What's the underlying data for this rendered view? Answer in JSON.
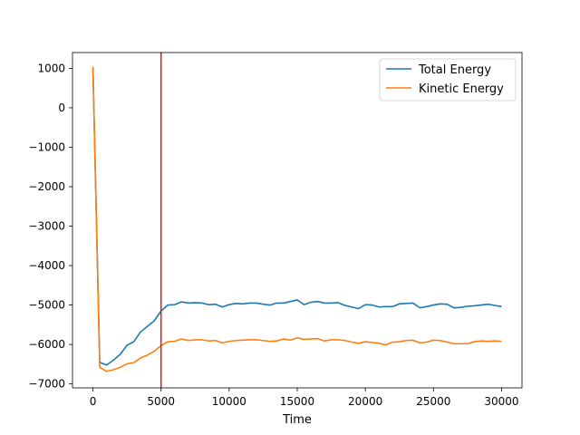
{
  "chart_data": {
    "type": "line",
    "title": "",
    "xlabel": "Time",
    "ylabel": "",
    "xlim": [
      -1500,
      31500
    ],
    "ylim": [
      -7100,
      1400
    ],
    "xticks": [
      0,
      5000,
      10000,
      15000,
      20000,
      25000,
      30000
    ],
    "xtick_labels": [
      "0",
      "5000",
      "10000",
      "15000",
      "20000",
      "25000",
      "30000"
    ],
    "yticks": [
      1000,
      0,
      -1000,
      -2000,
      -3000,
      -4000,
      -5000,
      -6000,
      -7000
    ],
    "ytick_labels": [
      "1000",
      "0",
      "−1000",
      "−2000",
      "−3000",
      "−4000",
      "−5000",
      "−6000",
      "−7000"
    ],
    "grid": false,
    "legend": "top-right",
    "vline": {
      "x": 5000,
      "color": "#d62728"
    },
    "x": [
      0,
      500,
      1000,
      1500,
      2000,
      2500,
      3000,
      3500,
      4000,
      4500,
      5000,
      5500,
      6000,
      6500,
      7000,
      7500,
      8000,
      8500,
      9000,
      9500,
      10000,
      10500,
      11000,
      11500,
      12000,
      12500,
      13000,
      13500,
      14000,
      14500,
      15000,
      15500,
      16000,
      16500,
      17000,
      17500,
      18000,
      18500,
      19000,
      19500,
      20000,
      20500,
      21000,
      21500,
      22000,
      22500,
      23000,
      23500,
      24000,
      24500,
      25000,
      25500,
      26000,
      26500,
      27000,
      27500,
      28000,
      28500,
      29000,
      29500,
      30000
    ],
    "series": [
      {
        "name": "Total Energy",
        "color": "#1f77b4",
        "values": [
          1020,
          -6450,
          -6520,
          -6400,
          -6250,
          -6020,
          -5930,
          -5680,
          -5540,
          -5400,
          -5150,
          -5000,
          -4990,
          -4920,
          -4950,
          -4940,
          -4950,
          -4990,
          -4980,
          -5050,
          -4990,
          -4960,
          -4970,
          -4950,
          -4950,
          -4980,
          -5000,
          -4950,
          -4950,
          -4910,
          -4870,
          -4990,
          -4930,
          -4910,
          -4950,
          -4950,
          -4940,
          -5010,
          -5050,
          -5090,
          -4990,
          -5000,
          -5050,
          -5040,
          -5040,
          -4970,
          -4960,
          -4950,
          -5070,
          -5040,
          -5000,
          -4970,
          -4980,
          -5070,
          -5060,
          -5030,
          -5020,
          -5000,
          -4980,
          -5010,
          -5040
        ]
      },
      {
        "name": "Kinetic Energy",
        "color": "#ff7f0e",
        "values": [
          1040,
          -6580,
          -6680,
          -6640,
          -6580,
          -6490,
          -6460,
          -6340,
          -6270,
          -6170,
          -6030,
          -5930,
          -5920,
          -5860,
          -5900,
          -5880,
          -5880,
          -5910,
          -5900,
          -5960,
          -5920,
          -5900,
          -5890,
          -5880,
          -5880,
          -5900,
          -5920,
          -5910,
          -5860,
          -5890,
          -5830,
          -5870,
          -5860,
          -5850,
          -5910,
          -5880,
          -5880,
          -5900,
          -5940,
          -5970,
          -5930,
          -5950,
          -5970,
          -6010,
          -5940,
          -5930,
          -5900,
          -5890,
          -5960,
          -5940,
          -5890,
          -5900,
          -5940,
          -5980,
          -5980,
          -5980,
          -5930,
          -5910,
          -5920,
          -5910,
          -5920
        ]
      }
    ]
  }
}
